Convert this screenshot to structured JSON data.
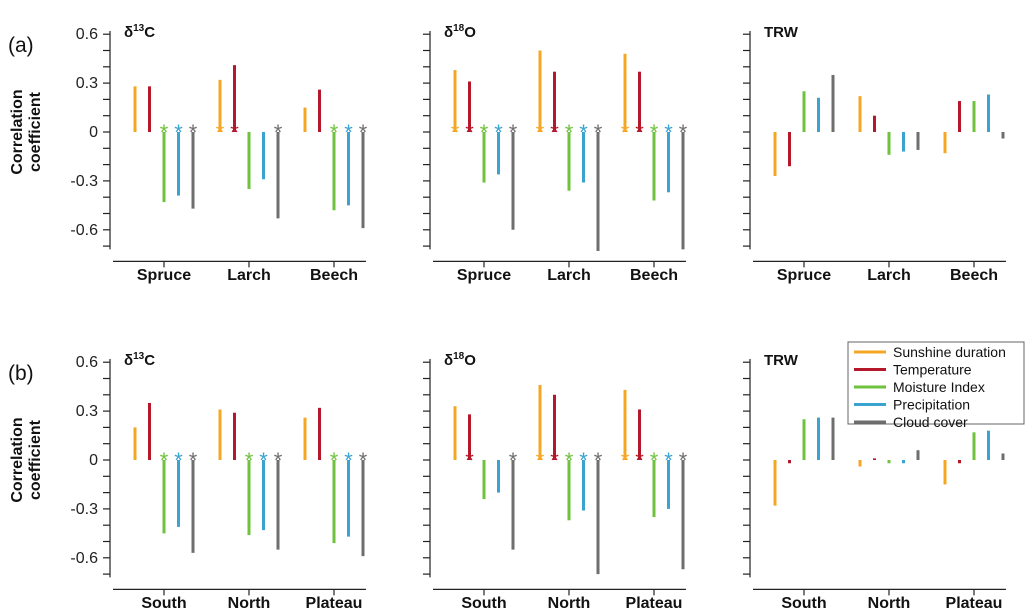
{
  "figure": {
    "y_axis_label": "Correlation\ncoefficient",
    "row_tags": [
      "(a)",
      "(b)"
    ],
    "y_ticks": [
      0.6,
      0.3,
      0,
      -0.3,
      -0.6
    ],
    "y_tick_labels": [
      "0.6",
      "0.3",
      "0",
      "-0.3",
      "-0.6"
    ],
    "significance_marker": "*",
    "series_colors": [
      "#f5a623",
      "#b5182b",
      "#6fc23c",
      "#3aa3cf",
      "#6e6e6e"
    ],
    "legend": {
      "entries": [
        "Sunshine duration",
        "Temperature",
        "Moisture Index",
        "Precipitation",
        "Cloud cover"
      ]
    }
  },
  "chart_data": [
    {
      "type": "bar",
      "panel": "(a)",
      "title": "δ13C",
      "title_base": "δ",
      "title_sup": "13",
      "title_rest": "C",
      "categories": [
        "Spruce",
        "Larch",
        "Beech"
      ],
      "ylim": [
        -0.72,
        0.62
      ],
      "series": [
        {
          "name": "Sunshine duration",
          "values": [
            0.28,
            0.32,
            0.15
          ],
          "significant": [
            false,
            true,
            false
          ]
        },
        {
          "name": "Temperature",
          "values": [
            0.28,
            0.41,
            0.26
          ],
          "significant": [
            false,
            true,
            false
          ]
        },
        {
          "name": "Moisture Index",
          "values": [
            -0.43,
            -0.35,
            -0.48
          ],
          "significant": [
            true,
            false,
            true
          ]
        },
        {
          "name": "Precipitation",
          "values": [
            -0.39,
            -0.29,
            -0.45
          ],
          "significant": [
            true,
            false,
            true
          ]
        },
        {
          "name": "Cloud cover",
          "values": [
            -0.47,
            -0.53,
            -0.59
          ],
          "significant": [
            true,
            true,
            true
          ]
        }
      ]
    },
    {
      "type": "bar",
      "panel": "(a)",
      "title": "δ18O",
      "title_base": "δ",
      "title_sup": "18",
      "title_rest": "O",
      "categories": [
        "Spruce",
        "Larch",
        "Beech"
      ],
      "ylim": [
        -0.72,
        0.62
      ],
      "series": [
        {
          "name": "Sunshine duration",
          "values": [
            0.38,
            0.5,
            0.48
          ],
          "significant": [
            true,
            true,
            true
          ]
        },
        {
          "name": "Temperature",
          "values": [
            0.31,
            0.37,
            0.37
          ],
          "significant": [
            true,
            true,
            true
          ]
        },
        {
          "name": "Moisture Index",
          "values": [
            -0.31,
            -0.36,
            -0.42
          ],
          "significant": [
            true,
            true,
            true
          ]
        },
        {
          "name": "Precipitation",
          "values": [
            -0.26,
            -0.31,
            -0.37
          ],
          "significant": [
            true,
            true,
            true
          ]
        },
        {
          "name": "Cloud cover",
          "values": [
            -0.6,
            -0.73,
            -0.72
          ],
          "significant": [
            true,
            true,
            true
          ]
        }
      ]
    },
    {
      "type": "bar",
      "panel": "(a)",
      "title": "TRW",
      "title_base": "TRW",
      "title_sup": "",
      "title_rest": "",
      "categories": [
        "Spruce",
        "Larch",
        "Beech"
      ],
      "ylim": [
        -0.72,
        0.62
      ],
      "series": [
        {
          "name": "Sunshine duration",
          "values": [
            -0.27,
            0.22,
            -0.13
          ],
          "significant": [
            false,
            false,
            false
          ]
        },
        {
          "name": "Temperature",
          "values": [
            -0.21,
            0.1,
            0.19
          ],
          "significant": [
            false,
            false,
            false
          ]
        },
        {
          "name": "Moisture Index",
          "values": [
            0.25,
            -0.14,
            0.19
          ],
          "significant": [
            false,
            false,
            false
          ]
        },
        {
          "name": "Precipitation",
          "values": [
            0.21,
            -0.12,
            0.23
          ],
          "significant": [
            false,
            false,
            false
          ]
        },
        {
          "name": "Cloud cover",
          "values": [
            0.35,
            -0.11,
            -0.04
          ],
          "significant": [
            false,
            false,
            false
          ]
        }
      ]
    },
    {
      "type": "bar",
      "panel": "(b)",
      "title": "δ13C",
      "title_base": "δ",
      "title_sup": "13",
      "title_rest": "C",
      "categories": [
        "South",
        "North",
        "Plateau"
      ],
      "ylim": [
        -0.72,
        0.62
      ],
      "series": [
        {
          "name": "Sunshine duration",
          "values": [
            0.2,
            0.31,
            0.26
          ],
          "significant": [
            false,
            false,
            false
          ]
        },
        {
          "name": "Temperature",
          "values": [
            0.35,
            0.29,
            0.32
          ],
          "significant": [
            false,
            false,
            false
          ]
        },
        {
          "name": "Moisture Index",
          "values": [
            -0.45,
            -0.46,
            -0.51
          ],
          "significant": [
            true,
            true,
            true
          ]
        },
        {
          "name": "Precipitation",
          "values": [
            -0.41,
            -0.43,
            -0.47
          ],
          "significant": [
            true,
            true,
            true
          ]
        },
        {
          "name": "Cloud cover",
          "values": [
            -0.57,
            -0.55,
            -0.59
          ],
          "significant": [
            true,
            true,
            true
          ]
        }
      ]
    },
    {
      "type": "bar",
      "panel": "(b)",
      "title": "δ18O",
      "title_base": "δ",
      "title_sup": "18",
      "title_rest": "O",
      "categories": [
        "South",
        "North",
        "Plateau"
      ],
      "ylim": [
        -0.72,
        0.62
      ],
      "series": [
        {
          "name": "Sunshine duration",
          "values": [
            0.33,
            0.46,
            0.43
          ],
          "significant": [
            false,
            true,
            true
          ]
        },
        {
          "name": "Temperature",
          "values": [
            0.28,
            0.4,
            0.31
          ],
          "significant": [
            true,
            true,
            true
          ]
        },
        {
          "name": "Moisture Index",
          "values": [
            -0.24,
            -0.37,
            -0.35
          ],
          "significant": [
            false,
            true,
            true
          ]
        },
        {
          "name": "Precipitation",
          "values": [
            -0.2,
            -0.31,
            -0.3
          ],
          "significant": [
            false,
            true,
            true
          ]
        },
        {
          "name": "Cloud cover",
          "values": [
            -0.55,
            -0.7,
            -0.67
          ],
          "significant": [
            true,
            true,
            true
          ]
        }
      ]
    },
    {
      "type": "bar",
      "panel": "(b)",
      "title": "TRW",
      "title_base": "TRW",
      "title_sup": "",
      "title_rest": "",
      "categories": [
        "South",
        "North",
        "Plateau"
      ],
      "ylim": [
        -0.72,
        0.62
      ],
      "series": [
        {
          "name": "Sunshine duration",
          "values": [
            -0.28,
            -0.04,
            -0.15
          ],
          "significant": [
            false,
            false,
            false
          ]
        },
        {
          "name": "Temperature",
          "values": [
            -0.02,
            0.01,
            -0.02
          ],
          "significant": [
            false,
            false,
            false
          ]
        },
        {
          "name": "Moisture Index",
          "values": [
            0.25,
            -0.02,
            0.17
          ],
          "significant": [
            false,
            false,
            false
          ]
        },
        {
          "name": "Precipitation",
          "values": [
            0.26,
            -0.02,
            0.18
          ],
          "significant": [
            false,
            false,
            false
          ]
        },
        {
          "name": "Cloud cover",
          "values": [
            0.26,
            0.06,
            0.04
          ],
          "significant": [
            false,
            false,
            false
          ]
        }
      ]
    }
  ]
}
